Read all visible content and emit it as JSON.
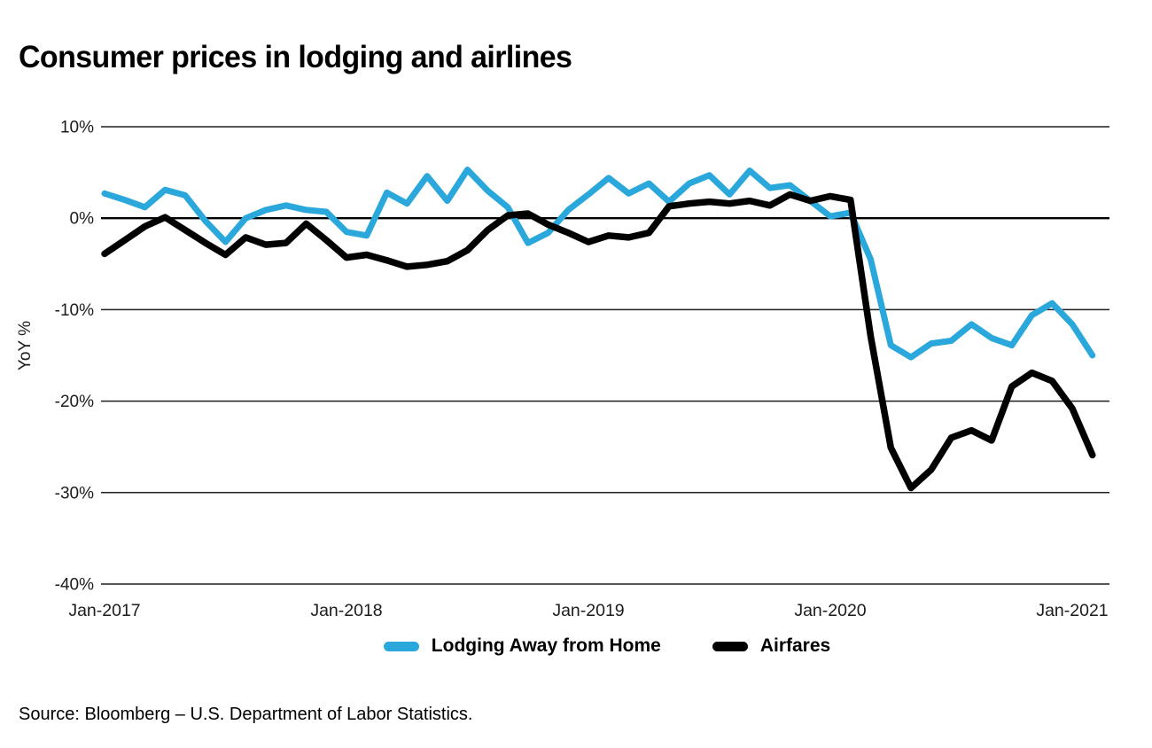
{
  "page": {
    "title": "Consumer prices in lodging and airlines",
    "source": "Source: Bloomberg – U.S. Department of Labor Statistics."
  },
  "chart_data": {
    "type": "line",
    "title": "Consumer prices in lodging and airlines",
    "xlabel": "",
    "ylabel": "YoY %",
    "ylim": [
      -40,
      10
    ],
    "grid": "horizontal",
    "legend_position": "bottom-center",
    "x_unit": "month",
    "x_start": "Jan-2017",
    "x_end": "Feb-2021",
    "n_points": 50,
    "ytick_values": [
      10,
      0,
      -10,
      -20,
      -30,
      -40
    ],
    "ytick_labels": [
      "10%",
      "0%",
      "-10%",
      "-20%",
      "-30%",
      "-40%"
    ],
    "xtick_labels": [
      "Jan-2017",
      "Jan-2018",
      "Jan-2019",
      "Jan-2020",
      "Jan-2021"
    ],
    "xtick_month_indices": [
      0,
      12,
      24,
      36,
      48
    ],
    "series": [
      {
        "name": "Lodging Away from Home",
        "color": "#2AA7DB",
        "values": [
          2.7,
          2.0,
          1.2,
          3.1,
          2.5,
          -0.3,
          -2.6,
          0.0,
          0.9,
          1.4,
          0.9,
          0.7,
          -1.5,
          -1.9,
          2.8,
          1.6,
          4.6,
          1.9,
          5.3,
          3.0,
          1.2,
          -2.7,
          -1.6,
          0.9,
          2.6,
          4.4,
          2.7,
          3.8,
          1.8,
          3.8,
          4.7,
          2.6,
          5.2,
          3.3,
          3.6,
          1.9,
          0.2,
          0.6,
          -4.5,
          -13.9,
          -15.2,
          -13.7,
          -13.4,
          -11.6,
          -13.1,
          -13.9,
          -10.6,
          -9.3,
          -11.6,
          -15.0
        ]
      },
      {
        "name": "Airfares",
        "color": "#000000",
        "values": [
          -3.9,
          -2.4,
          -0.9,
          0.1,
          -1.3,
          -2.7,
          -4.0,
          -2.1,
          -2.9,
          -2.7,
          -0.6,
          -2.4,
          -4.3,
          -4.0,
          -4.6,
          -5.3,
          -5.1,
          -4.7,
          -3.5,
          -1.3,
          0.3,
          0.5,
          -0.7,
          -1.6,
          -2.6,
          -1.9,
          -2.1,
          -1.6,
          1.3,
          1.6,
          1.8,
          1.6,
          1.9,
          1.4,
          2.6,
          1.9,
          2.4,
          2.0,
          -12.9,
          -25.1,
          -29.5,
          -27.5,
          -24.0,
          -23.2,
          -24.3,
          -18.4,
          -16.9,
          -17.8,
          -20.8,
          -25.9
        ]
      }
    ]
  }
}
